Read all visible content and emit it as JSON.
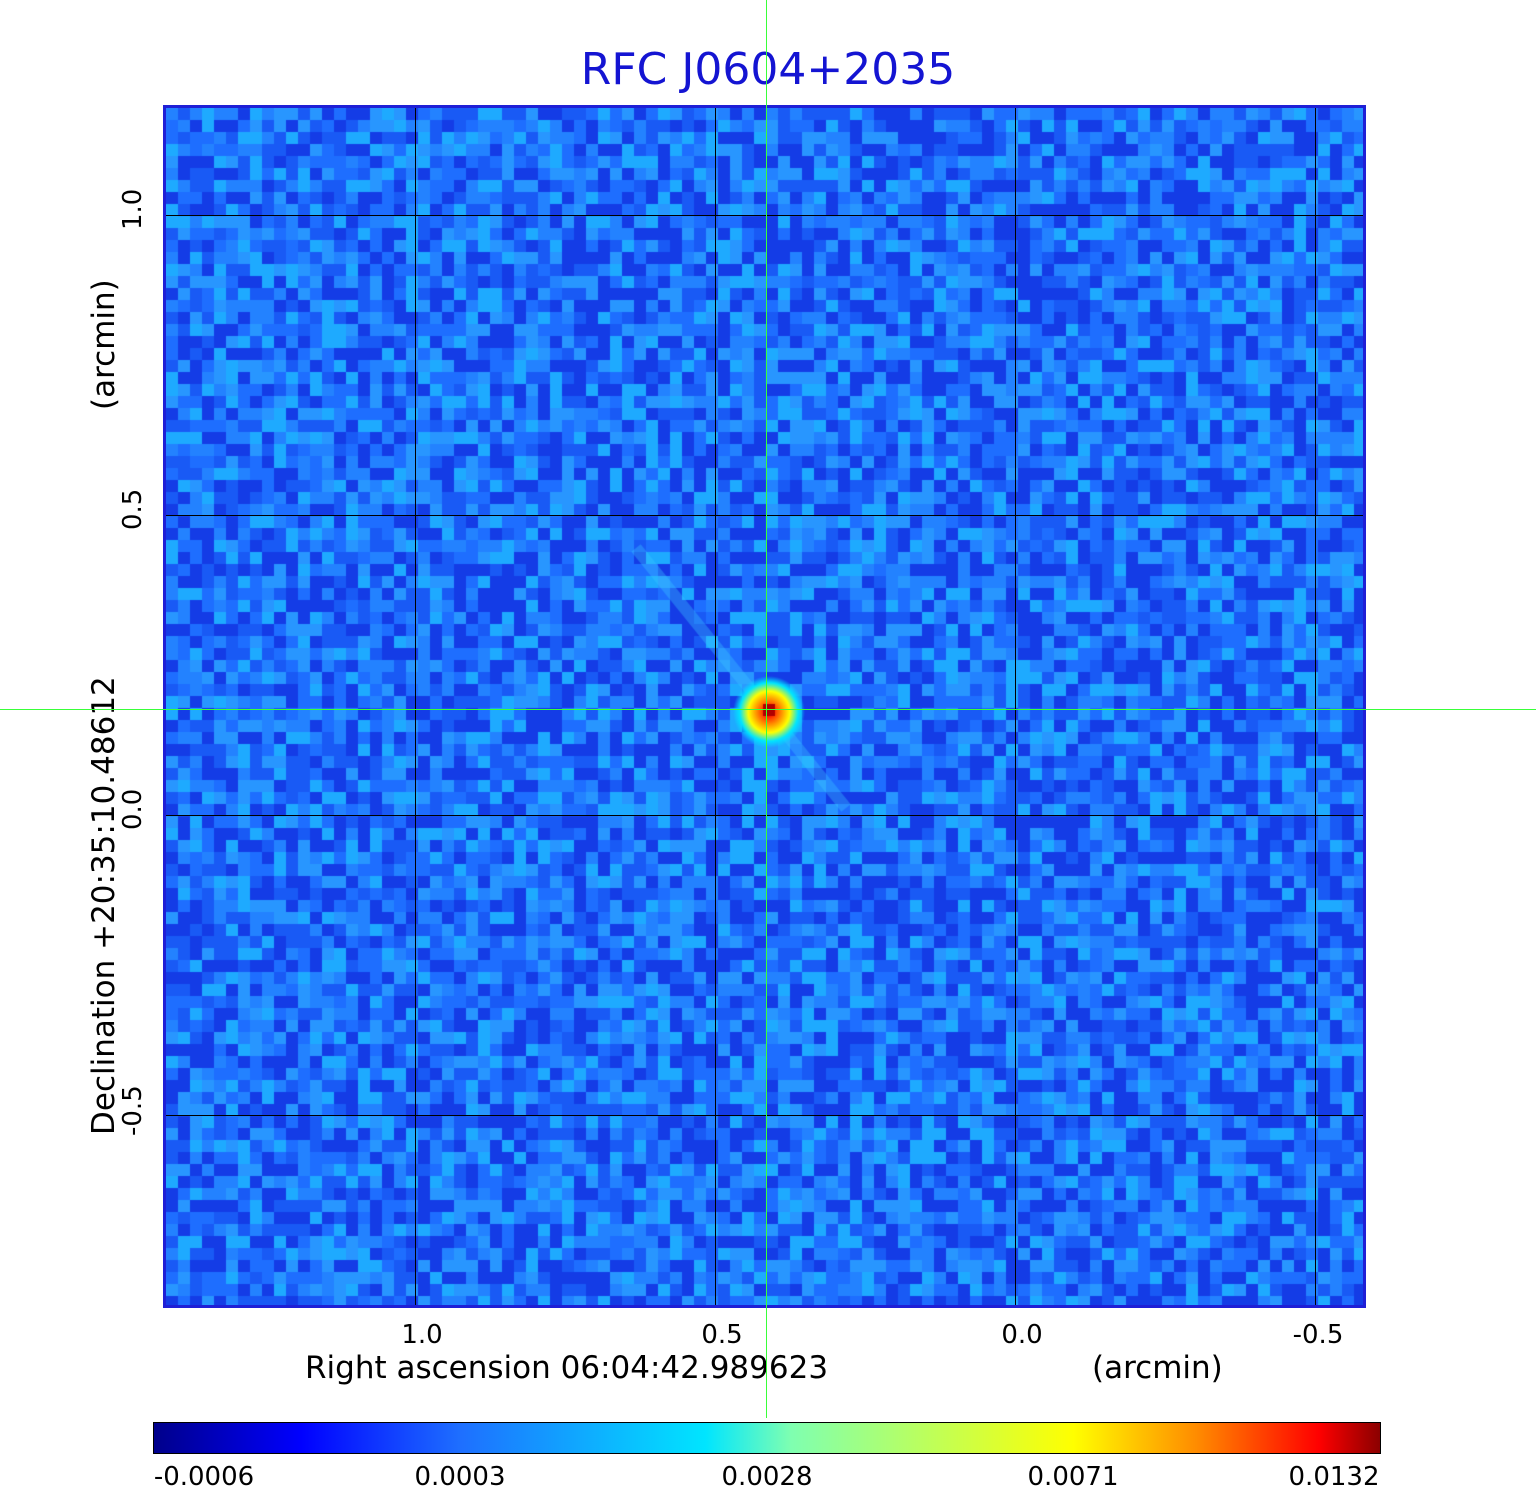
{
  "title": "RFC J0604+2035",
  "x_axis": {
    "label": "Right ascension  06:04:42.989623",
    "unit": "(arcmin)",
    "ticks": [
      "1.0",
      "0.5",
      "0.0",
      "-0.5"
    ]
  },
  "y_axis": {
    "label": "Declination  +20:35:10.48612",
    "unit": "(arcmin)",
    "ticks": [
      "1.0",
      "0.5",
      "0.0",
      "-0.5"
    ]
  },
  "colorbar": {
    "ticks": [
      "-0.0006",
      "0.0003",
      "0.0028",
      "0.0071",
      "0.0132"
    ],
    "colors": [
      "#00008b",
      "#0000ff",
      "#00e5ff",
      "#ffff00",
      "#ff0000",
      "#8b0000"
    ]
  },
  "image": {
    "background_color": "#1e6fff",
    "source_peak_color": "#ff0000",
    "crosshair_color": "#39ff39",
    "frame_color": "#1f1fd6"
  }
}
